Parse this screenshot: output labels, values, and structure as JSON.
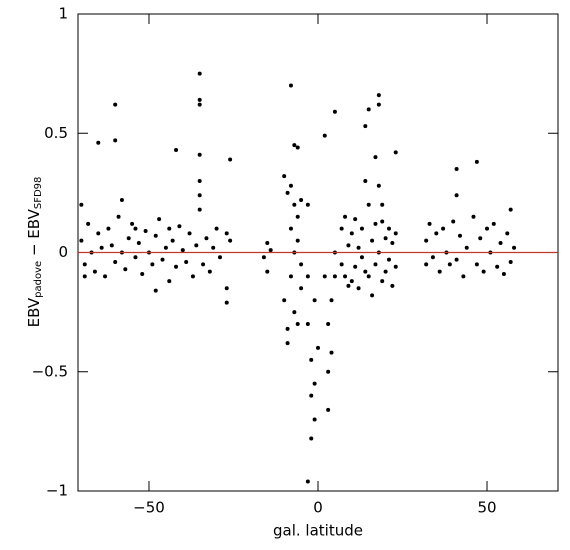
{
  "chart_data": {
    "type": "scatter",
    "xlabel": "gal. latitude",
    "ylabel": {
      "main1": "EBV",
      "sub1": "padove",
      "sep": " − ",
      "main2": "EBV",
      "sub2": "SFD98"
    },
    "xlim": [
      -71,
      71
    ],
    "ylim": [
      -1,
      1
    ],
    "xticks": [
      {
        "value": -50,
        "label": "−50"
      },
      0,
      50
    ],
    "yticks": [
      {
        "value": -1,
        "label": "−1"
      },
      {
        "value": -0.5,
        "label": "−0.5"
      },
      0,
      0.5,
      1
    ],
    "color": "#000000",
    "hline": {
      "value": 0,
      "color": "#c0392b"
    },
    "x": [
      -70,
      -69,
      -68,
      -67,
      -66,
      -65,
      -64,
      -63,
      -62,
      -61,
      -60,
      -59,
      -58,
      -57,
      -56,
      -55,
      -54,
      -53,
      -52,
      -51,
      -50,
      -49,
      -48,
      -47,
      -46,
      -45,
      -44,
      -43,
      -42,
      -41,
      -40,
      -39,
      -38,
      -37,
      -36,
      -35,
      -34,
      -33,
      -32,
      -31,
      -30,
      -29,
      -27,
      -26,
      -27,
      -65,
      -60,
      -60,
      -42,
      -35,
      -35,
      -35,
      -35,
      -26,
      -27,
      -35,
      -35,
      -70,
      -58,
      -48,
      -16,
      -15,
      -15,
      -14,
      -10,
      -10,
      -9,
      -9,
      -8,
      -8,
      -8,
      -7,
      -7,
      -7,
      -6,
      -6,
      -6,
      -5,
      -5,
      -5,
      -8,
      -7,
      -6,
      -9,
      -3,
      -3,
      -3,
      -2,
      -2,
      -2,
      -1,
      -1,
      -1,
      -3,
      0,
      2,
      2,
      3,
      3,
      3,
      4,
      4,
      5,
      5,
      5,
      7,
      7,
      8,
      8,
      9,
      10,
      10,
      11,
      11,
      12,
      12,
      13,
      13,
      14,
      14,
      14,
      15,
      15,
      15,
      16,
      16,
      17,
      17,
      17,
      18,
      18,
      18,
      18,
      19,
      19,
      20,
      20,
      21,
      21,
      22,
      22,
      23,
      23,
      23,
      32,
      32,
      33,
      34,
      35,
      36,
      37,
      38,
      39,
      40,
      41,
      41,
      41,
      42,
      43,
      44,
      46,
      47,
      47,
      48,
      49,
      50,
      51,
      52,
      53,
      54,
      55,
      56,
      57,
      57,
      58,
      -69,
      -54,
      -44,
      9,
      19
    ],
    "values": [
      0.05,
      -0.05,
      0.12,
      0.0,
      -0.08,
      0.08,
      0.02,
      -0.1,
      0.1,
      0.03,
      -0.04,
      0.15,
      0.0,
      -0.07,
      0.06,
      0.12,
      -0.02,
      0.04,
      -0.09,
      0.09,
      0.0,
      -0.05,
      0.07,
      0.14,
      -0.03,
      0.02,
      -0.12,
      0.05,
      -0.06,
      0.11,
      0.01,
      -0.04,
      0.08,
      -0.1,
      0.03,
      0.18,
      -0.05,
      0.06,
      -0.08,
      0.02,
      0.1,
      -0.02,
      -0.15,
      0.05,
      0.08,
      0.46,
      0.62,
      0.47,
      0.43,
      0.75,
      0.64,
      0.62,
      0.41,
      0.39,
      -0.21,
      0.3,
      0.24,
      0.2,
      0.22,
      -0.16,
      -0.02,
      0.04,
      -0.08,
      0.01,
      0.32,
      -0.2,
      0.25,
      -0.32,
      0.28,
      -0.1,
      0.1,
      0.2,
      -0.25,
      0.0,
      0.15,
      -0.3,
      0.05,
      0.22,
      -0.15,
      -0.05,
      0.7,
      0.45,
      0.44,
      -0.38,
      0.2,
      -0.1,
      -0.3,
      -0.45,
      -0.6,
      -0.78,
      -0.55,
      -0.7,
      -0.2,
      -0.96,
      -0.4,
      0.49,
      -0.1,
      -0.3,
      -0.5,
      -0.66,
      -0.2,
      -0.42,
      0.59,
      0.0,
      -0.1,
      0.1,
      -0.05,
      0.15,
      -0.1,
      0.03,
      -0.12,
      0.08,
      0.14,
      -0.06,
      0.02,
      -0.15,
      0.1,
      -0.02,
      0.3,
      -0.08,
      0.53,
      0.6,
      0.2,
      -0.1,
      0.05,
      -0.18,
      0.4,
      0.12,
      -0.05,
      0.66,
      0.62,
      0.28,
      0.0,
      0.13,
      -0.12,
      0.06,
      -0.08,
      0.1,
      -0.03,
      0.04,
      -0.14,
      0.42,
      0.08,
      -0.06,
      0.05,
      -0.05,
      0.12,
      -0.02,
      0.08,
      -0.08,
      0.1,
      0.0,
      -0.05,
      0.13,
      0.35,
      0.24,
      -0.03,
      0.07,
      -0.1,
      0.02,
      0.15,
      0.38,
      -0.05,
      0.06,
      -0.08,
      0.1,
      0.0,
      0.12,
      -0.06,
      0.04,
      -0.09,
      0.08,
      0.18,
      -0.04,
      0.02,
      -0.1,
      0.1,
      0.1,
      -0.14,
      0.2
    ]
  }
}
